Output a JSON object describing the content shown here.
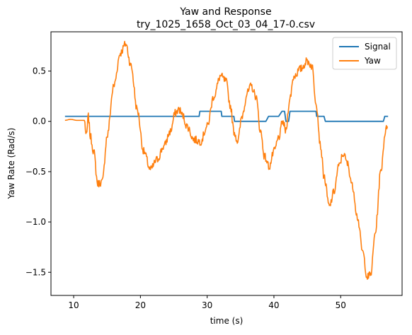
{
  "chart_data": {
    "type": "line",
    "title": "Yaw and Response",
    "subtitle": "try_1025_1658_Oct_03_04_17-0.csv",
    "xlabel": "time (s)",
    "ylabel": "Yaw Rate (Rad/s)",
    "xlim": [
      6.6,
      59.2
    ],
    "ylim": [
      -1.73,
      0.89
    ],
    "xticks": [
      10,
      20,
      30,
      40,
      50
    ],
    "yticks": [
      -1.5,
      -1.0,
      -0.5,
      0.0,
      0.5
    ],
    "ytick_labels": [
      "−1.5",
      "−1.0",
      "−0.5",
      "0.0",
      "0.5"
    ],
    "legend_position": "top-right",
    "grid": false,
    "series": [
      {
        "name": "Signal",
        "color": "#1f77b4",
        "points": [
          [
            8.7,
            0.05
          ],
          [
            28.8,
            0.05
          ],
          [
            28.9,
            0.1
          ],
          [
            32.1,
            0.1
          ],
          [
            32.2,
            0.05
          ],
          [
            34.0,
            0.05
          ],
          [
            34.1,
            0.0
          ],
          [
            38.8,
            0.0
          ],
          [
            39.2,
            0.05
          ],
          [
            40.7,
            0.05
          ],
          [
            41.2,
            0.1
          ],
          [
            41.6,
            0.1
          ],
          [
            41.8,
            0.0
          ],
          [
            42.2,
            0.0
          ],
          [
            42.4,
            0.1
          ],
          [
            46.3,
            0.1
          ],
          [
            46.4,
            0.05
          ],
          [
            47.5,
            0.05
          ],
          [
            47.7,
            0.0
          ],
          [
            56.4,
            0.0
          ],
          [
            56.6,
            0.05
          ],
          [
            57.1,
            0.05
          ]
        ]
      },
      {
        "name": "Yaw",
        "color": "#ff7f0e",
        "points": [
          [
            8.7,
            0.01
          ],
          [
            9.5,
            0.02
          ],
          [
            10.5,
            0.01
          ],
          [
            11.6,
            0.01
          ],
          [
            11.9,
            -0.15
          ],
          [
            12.2,
            0.05
          ],
          [
            12.5,
            -0.15
          ],
          [
            13.0,
            -0.3
          ],
          [
            13.6,
            -0.62
          ],
          [
            14.3,
            -0.6
          ],
          [
            15.0,
            -0.15
          ],
          [
            16.0,
            0.35
          ],
          [
            17.0,
            0.68
          ],
          [
            17.8,
            0.77
          ],
          [
            18.6,
            0.55
          ],
          [
            19.5,
            0.12
          ],
          [
            20.5,
            -0.3
          ],
          [
            21.5,
            -0.48
          ],
          [
            22.5,
            -0.38
          ],
          [
            23.5,
            -0.25
          ],
          [
            24.5,
            -0.1
          ],
          [
            25.2,
            0.08
          ],
          [
            25.8,
            0.12
          ],
          [
            26.3,
            0.06
          ],
          [
            27.0,
            -0.05
          ],
          [
            28.0,
            -0.18
          ],
          [
            29.0,
            -0.2
          ],
          [
            30.0,
            -0.05
          ],
          [
            31.0,
            0.25
          ],
          [
            32.0,
            0.45
          ],
          [
            32.8,
            0.4
          ],
          [
            33.5,
            0.15
          ],
          [
            34.0,
            -0.1
          ],
          [
            34.6,
            -0.2
          ],
          [
            35.2,
            0.05
          ],
          [
            36.0,
            0.28
          ],
          [
            36.6,
            0.35
          ],
          [
            37.3,
            0.25
          ],
          [
            38.0,
            -0.1
          ],
          [
            38.6,
            -0.35
          ],
          [
            39.3,
            -0.45
          ],
          [
            40.0,
            -0.3
          ],
          [
            40.8,
            -0.15
          ],
          [
            41.3,
            0.0
          ],
          [
            41.8,
            -0.1
          ],
          [
            42.3,
            0.2
          ],
          [
            43.0,
            0.45
          ],
          [
            44.0,
            0.52
          ],
          [
            45.0,
            0.6
          ],
          [
            45.7,
            0.55
          ],
          [
            46.3,
            0.2
          ],
          [
            47.0,
            -0.25
          ],
          [
            47.5,
            -0.55
          ],
          [
            48.3,
            -0.85
          ],
          [
            49.0,
            -0.7
          ],
          [
            49.7,
            -0.45
          ],
          [
            50.4,
            -0.32
          ],
          [
            51.0,
            -0.42
          ],
          [
            51.8,
            -0.65
          ],
          [
            52.5,
            -0.95
          ],
          [
            53.3,
            -1.3
          ],
          [
            54.0,
            -1.55
          ],
          [
            54.5,
            -1.52
          ],
          [
            55.2,
            -1.1
          ],
          [
            56.0,
            -0.5
          ],
          [
            56.7,
            -0.1
          ],
          [
            57.0,
            -0.05
          ]
        ]
      }
    ]
  }
}
